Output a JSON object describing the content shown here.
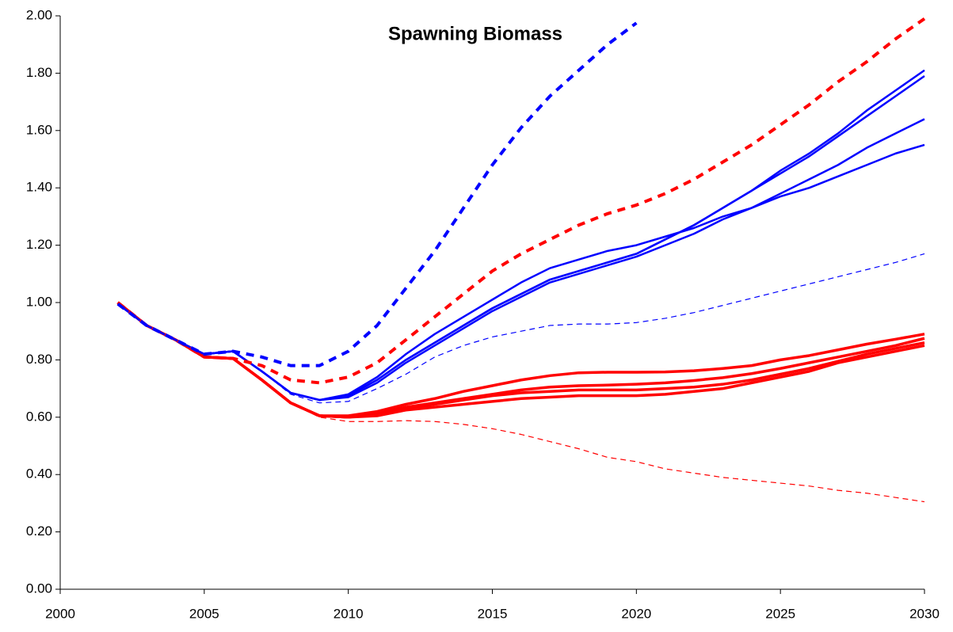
{
  "chart_data": {
    "type": "line",
    "title": "Spawning Biomass",
    "x": [
      2002,
      2003,
      2004,
      2005,
      2006,
      2007,
      2008,
      2009,
      2010,
      2011,
      2012,
      2013,
      2014,
      2015,
      2016,
      2017,
      2018,
      2019,
      2020,
      2021,
      2022,
      2023,
      2024,
      2025,
      2026,
      2027,
      2028,
      2029,
      2030
    ],
    "xlim": [
      2000,
      2030
    ],
    "xticks": [
      2000,
      2005,
      2010,
      2015,
      2020,
      2025,
      2030
    ],
    "ylim": [
      0,
      2
    ],
    "yticks": [
      {
        "value": 0,
        "label": "0.00"
      },
      {
        "value": 0.2,
        "label": "0.20"
      },
      {
        "value": 0.4,
        "label": "0.40"
      },
      {
        "value": 0.6,
        "label": "0.60"
      },
      {
        "value": 0.8,
        "label": "0.80"
      },
      {
        "value": 1,
        "label": "1.00"
      },
      {
        "value": 1.2,
        "label": "1.20"
      },
      {
        "value": 1.4,
        "label": "1.40"
      },
      {
        "value": 1.6,
        "label": "1.60"
      },
      {
        "value": 1.8,
        "label": "1.80"
      },
      {
        "value": 2,
        "label": "2.00"
      }
    ],
    "grid": false,
    "series": [
      {
        "color": "#ff0000",
        "dash": "dashed",
        "width": 1.2,
        "values": [
          1.0,
          0.92,
          0.87,
          0.81,
          0.805,
          0.73,
          0.65,
          0.6,
          0.585,
          0.585,
          0.588,
          0.585,
          0.575,
          0.56,
          0.54,
          0.515,
          0.49,
          0.46,
          0.445,
          0.42,
          0.405,
          0.39,
          0.38,
          0.37,
          0.36,
          0.345,
          0.335,
          0.32,
          0.305
        ]
      },
      {
        "color": "#0000ff",
        "dash": "dashed",
        "width": 1.2,
        "values": [
          0.995,
          0.92,
          0.87,
          0.82,
          0.83,
          0.76,
          0.68,
          0.65,
          0.655,
          0.7,
          0.75,
          0.81,
          0.85,
          0.88,
          0.9,
          0.92,
          0.925,
          0.925,
          0.93,
          0.945,
          0.965,
          0.99,
          1.015,
          1.04,
          1.065,
          1.09,
          1.115,
          1.14,
          1.17
        ]
      },
      {
        "color": "#ff0000",
        "dash": "solid",
        "width": 3.5,
        "values": [
          1.0,
          0.92,
          0.87,
          0.81,
          0.805,
          0.73,
          0.65,
          0.605,
          0.605,
          0.62,
          0.645,
          0.665,
          0.69,
          0.71,
          0.73,
          0.745,
          0.755,
          0.757,
          0.757,
          0.758,
          0.762,
          0.77,
          0.78,
          0.8,
          0.815,
          0.835,
          0.855,
          0.872,
          0.89
        ]
      },
      {
        "color": "#ff0000",
        "dash": "solid",
        "width": 3.5,
        "values": [
          1.0,
          0.92,
          0.87,
          0.81,
          0.805,
          0.73,
          0.65,
          0.605,
          0.6,
          0.615,
          0.635,
          0.65,
          0.665,
          0.68,
          0.695,
          0.705,
          0.71,
          0.712,
          0.715,
          0.72,
          0.728,
          0.738,
          0.752,
          0.77,
          0.79,
          0.81,
          0.83,
          0.85,
          0.875
        ]
      },
      {
        "color": "#ff0000",
        "dash": "solid",
        "width": 3.5,
        "values": [
          1.0,
          0.92,
          0.87,
          0.81,
          0.805,
          0.73,
          0.65,
          0.605,
          0.6,
          0.61,
          0.63,
          0.645,
          0.66,
          0.675,
          0.685,
          0.69,
          0.695,
          0.695,
          0.695,
          0.7,
          0.705,
          0.715,
          0.73,
          0.75,
          0.77,
          0.795,
          0.82,
          0.84,
          0.86
        ]
      },
      {
        "color": "#ff0000",
        "dash": "solid",
        "width": 3.5,
        "values": [
          1.0,
          0.92,
          0.87,
          0.81,
          0.805,
          0.73,
          0.65,
          0.605,
          0.6,
          0.605,
          0.625,
          0.635,
          0.645,
          0.655,
          0.665,
          0.67,
          0.675,
          0.675,
          0.675,
          0.68,
          0.69,
          0.7,
          0.72,
          0.74,
          0.76,
          0.79,
          0.81,
          0.83,
          0.85
        ]
      },
      {
        "color": "#0000ff",
        "dash": "solid",
        "width": 2.5,
        "values": [
          0.995,
          0.92,
          0.87,
          0.82,
          0.83,
          0.76,
          0.685,
          0.66,
          0.675,
          0.73,
          0.8,
          0.86,
          0.92,
          0.98,
          1.03,
          1.08,
          1.11,
          1.14,
          1.17,
          1.22,
          1.27,
          1.33,
          1.39,
          1.46,
          1.52,
          1.59,
          1.67,
          1.74,
          1.81
        ]
      },
      {
        "color": "#0000ff",
        "dash": "solid",
        "width": 2.5,
        "values": [
          0.995,
          0.92,
          0.87,
          0.82,
          0.83,
          0.76,
          0.685,
          0.66,
          0.675,
          0.73,
          0.8,
          0.86,
          0.92,
          0.98,
          1.03,
          1.08,
          1.11,
          1.14,
          1.17,
          1.22,
          1.27,
          1.33,
          1.39,
          1.45,
          1.51,
          1.58,
          1.65,
          1.72,
          1.79
        ]
      },
      {
        "color": "#0000ff",
        "dash": "solid",
        "width": 2.5,
        "values": [
          0.995,
          0.92,
          0.87,
          0.82,
          0.83,
          0.76,
          0.685,
          0.66,
          0.67,
          0.72,
          0.79,
          0.85,
          0.91,
          0.97,
          1.02,
          1.07,
          1.1,
          1.13,
          1.16,
          1.2,
          1.24,
          1.29,
          1.33,
          1.38,
          1.43,
          1.48,
          1.54,
          1.59,
          1.64
        ]
      },
      {
        "color": "#0000ff",
        "dash": "solid",
        "width": 2.5,
        "values": [
          0.995,
          0.92,
          0.87,
          0.82,
          0.83,
          0.76,
          0.685,
          0.66,
          0.68,
          0.74,
          0.82,
          0.89,
          0.95,
          1.01,
          1.07,
          1.12,
          1.15,
          1.18,
          1.2,
          1.23,
          1.26,
          1.3,
          1.33,
          1.37,
          1.4,
          1.44,
          1.48,
          1.52,
          1.55
        ]
      },
      {
        "color": "#ff0000",
        "dash": "dashed",
        "width": 4,
        "values": [
          1.0,
          0.92,
          0.87,
          0.81,
          0.805,
          0.78,
          0.73,
          0.72,
          0.74,
          0.79,
          0.87,
          0.95,
          1.03,
          1.11,
          1.17,
          1.22,
          1.27,
          1.31,
          1.34,
          1.38,
          1.43,
          1.49,
          1.55,
          1.62,
          1.69,
          1.77,
          1.84,
          1.92,
          1.99
        ]
      },
      {
        "color": "#0000ff",
        "dash": "dashed",
        "width": 4,
        "values": [
          0.995,
          0.92,
          0.87,
          0.82,
          0.83,
          0.81,
          0.78,
          0.78,
          0.83,
          0.92,
          1.05,
          1.18,
          1.33,
          1.48,
          1.61,
          1.72,
          1.81,
          1.9,
          1.975,
          null,
          null,
          null,
          null,
          null,
          null,
          null,
          null,
          null,
          null
        ]
      }
    ]
  }
}
